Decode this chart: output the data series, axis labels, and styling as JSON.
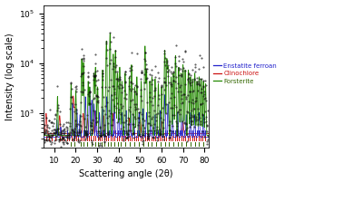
{
  "xlabel": "Scattering angle (2θ)",
  "ylabel": "Intensity (log scale)",
  "xlim": [
    5,
    82
  ],
  "legend_entries": [
    "Enstatite ferroan",
    "Clinochlore",
    "Forsterite"
  ],
  "legend_colors": [
    "#2222cc",
    "#cc1111",
    "#336600"
  ],
  "tick_colors": [
    "#2222cc",
    "#cc1111",
    "#336600"
  ],
  "line_colors": {
    "blue": "#2222cc",
    "red": "#cc1111",
    "green": "#228800"
  },
  "dot_color": "#111111",
  "background": "#ffffff",
  "enstatite_ticks": [
    10.5,
    11.2,
    14.2,
    15.8,
    18.2,
    19.2,
    20.5,
    21.5,
    22.5,
    23.5,
    24.5,
    25.5,
    26.5,
    27.5,
    28.5,
    29.5,
    30.5,
    31.5,
    32.5,
    33.5,
    34.5,
    35.5,
    36.5,
    37.5,
    38.5,
    39.5,
    40.5,
    41.5,
    42.5,
    43.5,
    44.5,
    45.5,
    46.5,
    47.5,
    48.5,
    49.5,
    50.5,
    51.5,
    52.5,
    53.5,
    54.5,
    55.5,
    56.5,
    57.5,
    58.5,
    59.5,
    60.5,
    61.5,
    62.5,
    63.5,
    64.5,
    65.5,
    66.5,
    67.5,
    68.5,
    69.5,
    70.5,
    71.5,
    72.5,
    73.5,
    74.5,
    75.5,
    76.5,
    77.5,
    78.5,
    79.5,
    80.5
  ],
  "clinochlore_ticks": [
    6.2,
    7.5,
    9.0,
    10.5,
    12.5,
    13.5,
    14.5,
    15.8,
    17.0,
    18.2,
    19.2,
    20.2,
    21.2,
    22.2,
    23.2,
    24.2,
    25.2,
    26.2,
    27.2,
    28.2,
    29.2,
    30.2,
    31.2,
    32.2,
    33.2,
    34.2,
    35.2,
    36.2,
    37.2,
    38.2,
    39.2,
    40.2,
    41.2,
    42.2,
    43.2,
    44.2,
    45.2,
    46.2,
    47.2,
    48.2,
    49.2,
    50.2,
    51.2,
    52.2,
    53.2,
    54.2,
    55.2,
    56.2,
    57.2,
    58.2,
    59.2,
    60.2,
    61.2,
    62.2,
    63.2,
    64.2,
    65.2,
    66.2,
    67.2,
    68.2,
    69.2,
    70.2,
    71.2,
    72.2,
    73.2,
    74.2,
    75.2,
    76.2,
    77.2,
    78.2,
    79.2,
    80.2
  ],
  "forsterite_ticks": [
    17.5,
    19.5,
    22.5,
    23.8,
    25.5,
    27.5,
    29.0,
    30.5,
    32.0,
    33.5,
    35.0,
    36.5,
    38.0,
    39.5,
    41.0,
    43.0,
    45.0,
    47.5,
    49.5,
    51.5,
    53.5,
    55.5,
    57.5,
    59.5,
    61.5,
    63.5,
    65.5,
    67.5,
    69.5,
    71.5,
    73.5,
    75.5,
    77.5,
    79.5
  ]
}
